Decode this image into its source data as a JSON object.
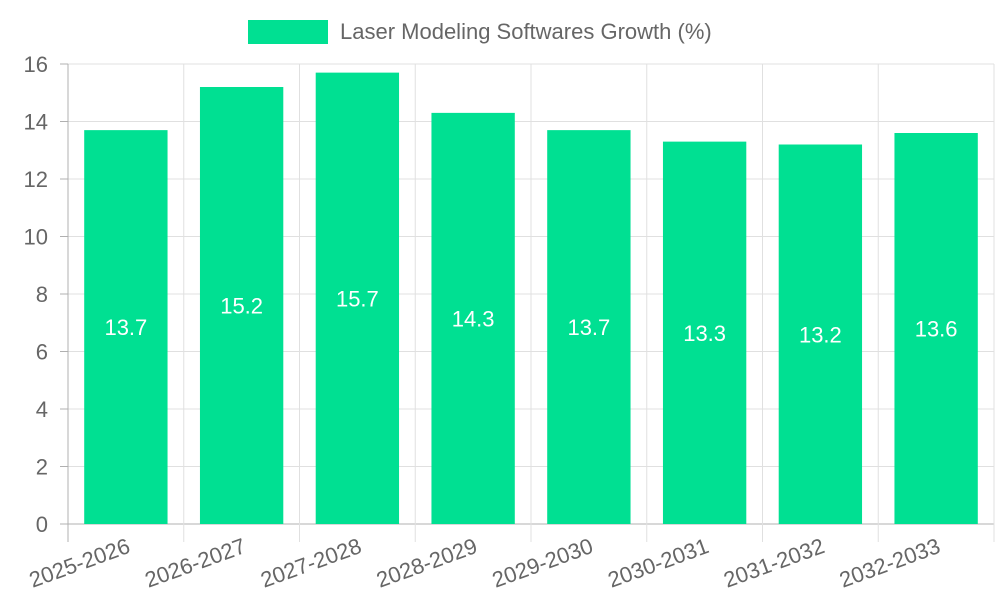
{
  "chart_data": {
    "type": "bar",
    "legend": {
      "position": "top",
      "entries": [
        {
          "label": "Laser Modeling Softwares Growth (%)",
          "color": "#00e092"
        }
      ]
    },
    "categories": [
      "2025-2026",
      "2026-2027",
      "2027-2028",
      "2028-2029",
      "2029-2030",
      "2030-2031",
      "2031-2032",
      "2032-2033"
    ],
    "series": [
      {
        "name": "Laser Modeling Softwares Growth (%)",
        "values": [
          13.7,
          15.2,
          15.7,
          14.3,
          13.7,
          13.3,
          13.2,
          13.6
        ],
        "color": "#00e092"
      }
    ],
    "ylim": [
      0,
      16
    ],
    "yticks": [
      0,
      2,
      4,
      6,
      8,
      10,
      12,
      14,
      16
    ],
    "data_labels": true,
    "grid": true,
    "xlabel": "",
    "ylabel": ""
  }
}
